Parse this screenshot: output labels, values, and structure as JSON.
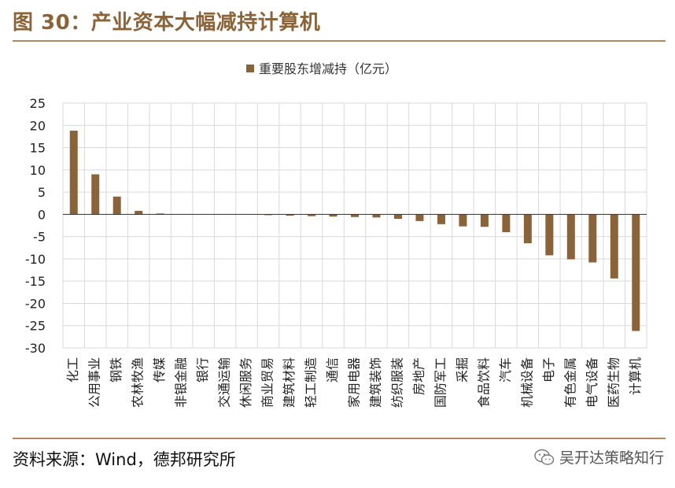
{
  "header": {
    "title": "图 30：产业资本大幅减持计算机"
  },
  "footer": {
    "source": "资料来源：Wind，德邦研究所",
    "brand": "吴开达策略知行"
  },
  "colors": {
    "bar": "#8a6339",
    "title": "#8a6339",
    "rule": "#b08a63",
    "grid": "#d9d9d9"
  },
  "chart_data": {
    "type": "bar",
    "legend": "重要股东增减持（亿元）",
    "legend_position": "top-center",
    "grid": true,
    "ylim": [
      -30,
      25
    ],
    "yticks": [
      25,
      20,
      15,
      10,
      5,
      0,
      -5,
      -10,
      -15,
      -20,
      -25,
      -30
    ],
    "categories": [
      "化工",
      "公用事业",
      "钢铁",
      "农林牧渔",
      "传媒",
      "非银金融",
      "银行",
      "交通运输",
      "休闲服务",
      "商业贸易",
      "建筑材料",
      "轻工制造",
      "通信",
      "家用电器",
      "建筑装饰",
      "纺织服装",
      "房地产",
      "国防军工",
      "采掘",
      "食品饮料",
      "汽车",
      "机械设备",
      "电子",
      "有色金属",
      "电气设备",
      "医药生物",
      "计算机"
    ],
    "values": [
      18.8,
      9.0,
      4.0,
      0.8,
      0.2,
      0.0,
      0.0,
      0.0,
      0.0,
      -0.1,
      -0.3,
      -0.4,
      -0.5,
      -0.6,
      -0.7,
      -1.0,
      -1.5,
      -2.2,
      -2.7,
      -2.8,
      -4.0,
      -6.5,
      -9.2,
      -10.1,
      -10.8,
      -14.4,
      -26.2
    ]
  }
}
